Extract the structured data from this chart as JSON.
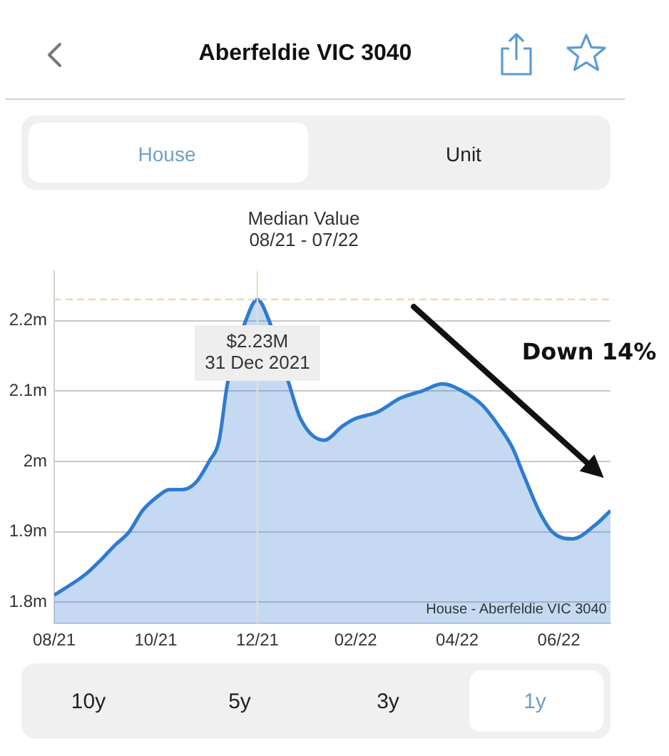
{
  "chart_data": {
    "type": "area",
    "title": "Median Value",
    "subtitle": "08/21 - 07/22",
    "x": [
      "2021-08-31",
      "2021-09-19",
      "2021-09-28",
      "2021-10-06",
      "2021-10-15",
      "2021-10-23",
      "2021-11-01",
      "2021-11-08",
      "2021-11-16",
      "2021-11-24",
      "2021-12-02",
      "2021-12-08",
      "2021-12-13",
      "2021-12-24",
      "2021-12-31",
      "2022-01-07",
      "2022-01-19",
      "2022-01-26",
      "2022-02-09",
      "2022-02-20",
      "2022-02-27",
      "2022-03-13",
      "2022-03-27",
      "2022-04-09",
      "2022-04-21",
      "2022-05-03",
      "2022-05-15",
      "2022-05-25",
      "2022-06-02",
      "2022-06-09",
      "2022-06-18",
      "2022-06-26",
      "2022-07-08",
      "2022-07-22",
      "2022-07-31"
    ],
    "series": [
      {
        "color": "#2f7bd0",
        "values": [
          1.81,
          1.84,
          1.86,
          1.88,
          1.9,
          1.93,
          1.95,
          1.96,
          1.96,
          1.97,
          2.0,
          2.03,
          2.11,
          2.2,
          2.23,
          2.2,
          2.11,
          2.06,
          2.03,
          2.05,
          2.06,
          2.07,
          2.09,
          2.1,
          2.11,
          2.1,
          2.08,
          2.05,
          2.02,
          1.98,
          1.93,
          1.9,
          1.89,
          1.91,
          1.93
        ]
      }
    ],
    "xlim": [
      "2021-08-31",
      "2022-07-31"
    ],
    "xticks": [
      {
        "value": "2021-08-31",
        "label": "08/21"
      },
      {
        "value": "2021-10-31",
        "label": "10/21"
      },
      {
        "value": "2021-12-31",
        "label": "12/21"
      },
      {
        "value": "2022-02-28",
        "label": "02/22"
      },
      {
        "value": "2022-04-30",
        "label": "04/22"
      },
      {
        "value": "2022-06-30",
        "label": "06/22"
      }
    ],
    "ylim": [
      1.77,
      2.27
    ],
    "yticks": [
      {
        "value": 1.8,
        "label": "1.8m"
      },
      {
        "value": 1.9,
        "label": "1.9m"
      },
      {
        "value": 2,
        "label": "2m"
      },
      {
        "value": 2.1,
        "label": "2.1m"
      },
      {
        "value": 2.2,
        "label": "2.2m"
      }
    ],
    "grid": "y",
    "ref_lines": [
      {
        "axis": "x",
        "value": "2021-12-31",
        "color": "#e6dccf"
      },
      {
        "axis": "y",
        "value": 2.23,
        "color": "#f3d3aa",
        "line_style": "dashed"
      }
    ],
    "annotations": [
      "Aberfeldie VIC 3040",
      "House",
      "Unit",
      "10y",
      "5y",
      "3y",
      "1y",
      "House - Aberfeldie VIC 3040",
      {
        "text": "$2.23M",
        "x": "2021-12-31",
        "y": 2.23
      },
      {
        "text": "31 Dec 2021",
        "x": "2021-12-31",
        "y": 2.23
      },
      "Down 14%"
    ]
  }
}
